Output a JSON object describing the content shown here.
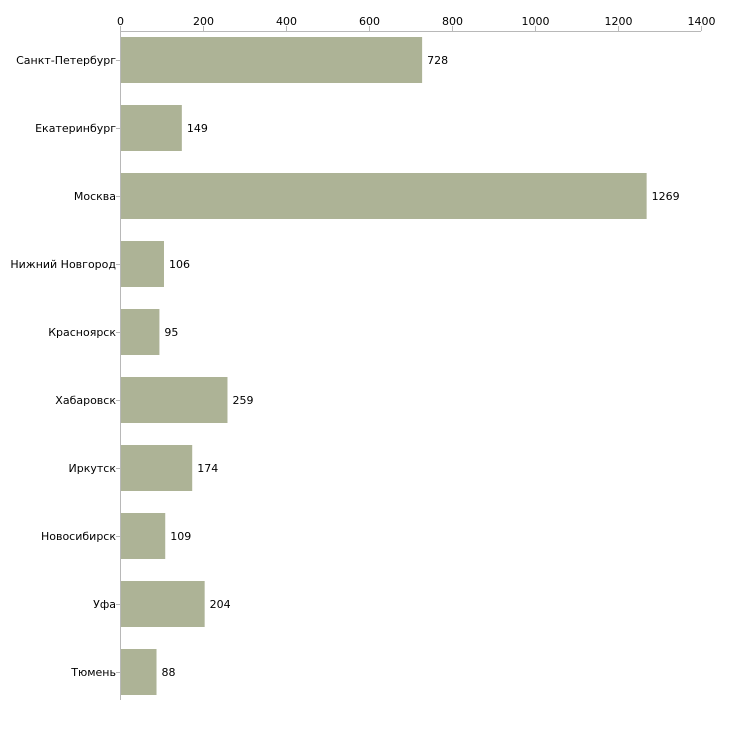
{
  "chart_data": {
    "type": "bar",
    "orientation": "horizontal",
    "title": "",
    "xlabel": "",
    "ylabel": "",
    "xlim": [
      0,
      1400
    ],
    "ticks": [
      0,
      200,
      400,
      600,
      800,
      1000,
      1200,
      1400
    ],
    "tick_labels": [
      "0",
      "200",
      "400",
      "600",
      "800",
      "1000",
      "1200",
      "1400"
    ],
    "grid": false,
    "legend": "none",
    "categories": [
      "Санкт-Петербург",
      "Екатеринбург",
      "Москва",
      "Нижний Новгород",
      "Красноярск",
      "Хабаровск",
      "Иркутск",
      "Новосибирск",
      "Уфа",
      "Тюмень"
    ],
    "values": [
      728,
      149,
      1269,
      106,
      95,
      259,
      174,
      109,
      204,
      88
    ],
    "value_labels": [
      "728",
      "149",
      "1269",
      "106",
      "95",
      "259",
      "174",
      "109",
      "204",
      "88"
    ]
  },
  "colors": {
    "bar": "#adb396",
    "axis": "#b8b8b8",
    "text": "#000000"
  }
}
